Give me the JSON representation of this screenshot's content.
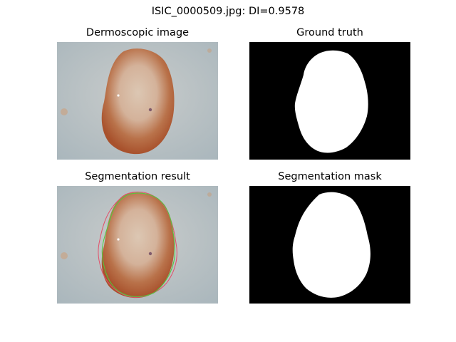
{
  "figure": {
    "title": "ISIC_0000509.jpg: DI=0.9578"
  },
  "panels": [
    {
      "title": "Dermoscopic image"
    },
    {
      "title": "Ground truth"
    },
    {
      "title": "Segmentation result"
    },
    {
      "title": "Segmentation mask"
    }
  ],
  "colors": {
    "background": "#ffffff",
    "skin": "#b9c1c4",
    "lesion_light": "#d9b9a1",
    "lesion_dark": "#a8512c",
    "mask_foreground": "#ffffff",
    "mask_background": "#000000",
    "contour_ground_truth": "#4ccd3c",
    "contour_prediction": "#e2506a"
  }
}
